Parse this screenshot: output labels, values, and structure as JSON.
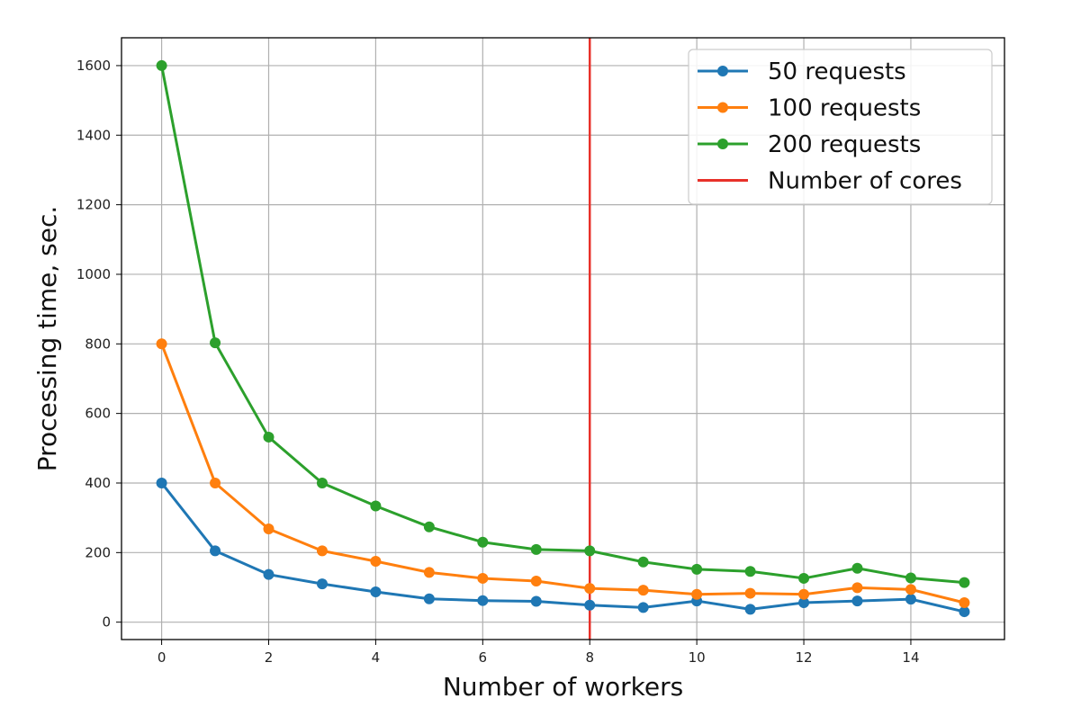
{
  "chart_data": {
    "type": "line",
    "title": "",
    "xlabel": "Number of workers",
    "ylabel": "Processing time, sec.",
    "xlim": [
      -0.75,
      15.75
    ],
    "ylim": [
      -50,
      1680
    ],
    "xticks": [
      0,
      2,
      4,
      6,
      8,
      10,
      12,
      14
    ],
    "yticks": [
      0,
      200,
      400,
      600,
      800,
      1000,
      1200,
      1400,
      1600
    ],
    "grid": true,
    "legend_position": "top-right",
    "x": [
      0,
      1,
      2,
      3,
      4,
      5,
      6,
      7,
      8,
      9,
      10,
      11,
      12,
      13,
      14,
      15
    ],
    "series": [
      {
        "name": "50 requests",
        "color": "#1f77b4",
        "marker": "circle",
        "values": [
          400,
          205,
          137,
          110,
          87,
          67,
          62,
          60,
          49,
          42,
          61,
          37,
          56,
          61,
          66,
          30
        ]
      },
      {
        "name": "100 requests",
        "color": "#ff7f0e",
        "marker": "circle",
        "values": [
          800,
          400,
          268,
          205,
          175,
          143,
          126,
          118,
          97,
          92,
          80,
          83,
          80,
          99,
          94,
          56
        ]
      },
      {
        "name": "200 requests",
        "color": "#2ca02c",
        "marker": "circle",
        "values": [
          1600,
          803,
          532,
          400,
          334,
          274,
          230,
          209,
          205,
          173,
          152,
          146,
          126,
          155,
          127,
          114
        ]
      }
    ],
    "reference_lines": [
      {
        "name": "Number of cores",
        "orientation": "vertical",
        "x": 8,
        "color": "#e8312a"
      }
    ]
  }
}
